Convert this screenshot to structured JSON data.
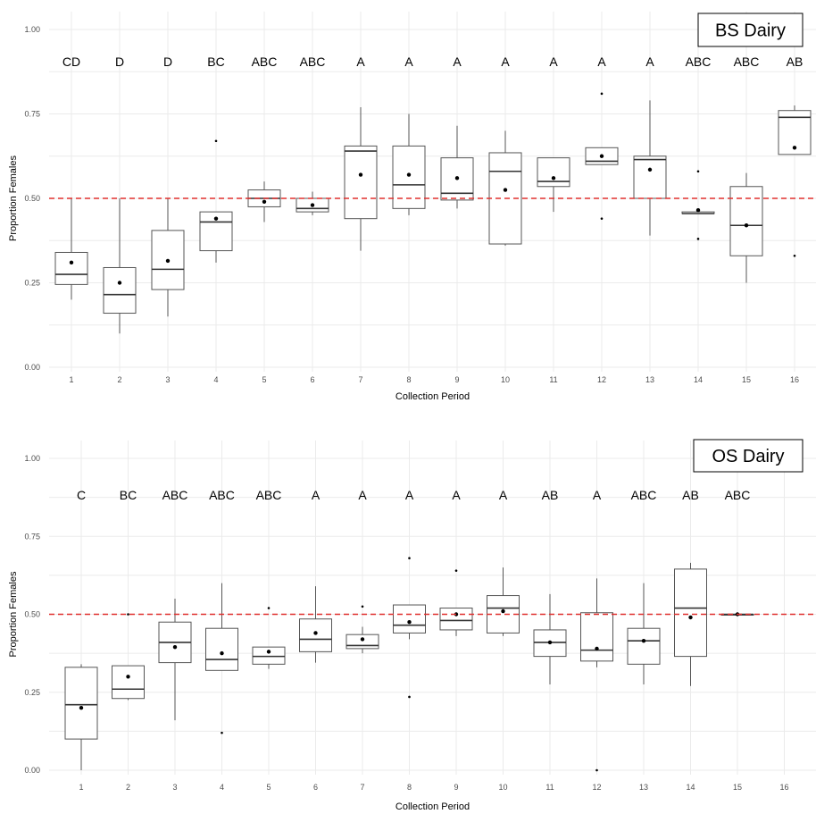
{
  "chart_data": [
    {
      "type": "box",
      "label_box": "BS Dairy",
      "xlabel": "Collection Period",
      "ylabel": "Proportion Females",
      "ylim": [
        0,
        1
      ],
      "yticks": [
        "0.00",
        "0.25",
        "0.50",
        "0.75",
        "1.00"
      ],
      "reference_line": 0.5,
      "reference_color": "#e0302f",
      "categories": [
        "1",
        "2",
        "3",
        "4",
        "5",
        "6",
        "7",
        "8",
        "9",
        "10",
        "11",
        "12",
        "13",
        "14",
        "15",
        "16"
      ],
      "letters": [
        "CD",
        "D",
        "D",
        "BC",
        "ABC",
        "ABC",
        "A",
        "A",
        "A",
        "A",
        "A",
        "A",
        "A",
        "ABC",
        "ABC",
        "AB"
      ],
      "boxes": [
        {
          "min": 0.2,
          "q1": 0.245,
          "median": 0.275,
          "q3": 0.34,
          "max": 0.5,
          "mean": 0.31
        },
        {
          "min": 0.1,
          "q1": 0.16,
          "median": 0.215,
          "q3": 0.295,
          "max": 0.5,
          "mean": 0.25
        },
        {
          "min": 0.15,
          "q1": 0.23,
          "median": 0.29,
          "q3": 0.405,
          "max": 0.5,
          "mean": 0.315
        },
        {
          "min": 0.31,
          "q1": 0.345,
          "median": 0.43,
          "q3": 0.46,
          "max": 0.46,
          "mean": 0.44,
          "outliers": [
            0.67
          ]
        },
        {
          "min": 0.43,
          "q1": 0.475,
          "median": 0.5,
          "q3": 0.525,
          "max": 0.55,
          "mean": 0.49
        },
        {
          "min": 0.45,
          "q1": 0.46,
          "median": 0.47,
          "q3": 0.5,
          "max": 0.52,
          "mean": 0.48
        },
        {
          "min": 0.345,
          "q1": 0.44,
          "median": 0.64,
          "q3": 0.655,
          "max": 0.77,
          "mean": 0.57
        },
        {
          "min": 0.45,
          "q1": 0.47,
          "median": 0.54,
          "q3": 0.655,
          "max": 0.75,
          "mean": 0.57
        },
        {
          "min": 0.47,
          "q1": 0.495,
          "median": 0.515,
          "q3": 0.62,
          "max": 0.715,
          "mean": 0.56
        },
        {
          "min": 0.36,
          "q1": 0.365,
          "median": 0.58,
          "q3": 0.635,
          "max": 0.7,
          "mean": 0.525
        },
        {
          "min": 0.46,
          "q1": 0.535,
          "median": 0.55,
          "q3": 0.62,
          "max": 0.62,
          "mean": 0.56
        },
        {
          "min": 0.6,
          "q1": 0.6,
          "median": 0.61,
          "q3": 0.65,
          "max": 0.65,
          "mean": 0.625,
          "outliers": [
            0.81,
            0.44
          ]
        },
        {
          "min": 0.39,
          "q1": 0.5,
          "median": 0.615,
          "q3": 0.625,
          "max": 0.79,
          "mean": 0.585
        },
        {
          "min": 0.455,
          "q1": 0.455,
          "median": 0.455,
          "q3": 0.46,
          "max": 0.46,
          "mean": 0.465,
          "outliers": [
            0.58,
            0.38
          ]
        },
        {
          "min": 0.25,
          "q1": 0.33,
          "median": 0.42,
          "q3": 0.535,
          "max": 0.575,
          "mean": 0.42
        },
        {
          "min": 0.63,
          "q1": 0.63,
          "median": 0.74,
          "q3": 0.76,
          "max": 0.775,
          "mean": 0.65,
          "outliers": [
            0.33
          ]
        }
      ]
    },
    {
      "type": "box",
      "label_box": "OS Dairy",
      "xlabel": "Collection Period",
      "ylabel": "Proportion Females",
      "ylim": [
        0,
        1
      ],
      "yticks": [
        "0.00",
        "0.25",
        "0.50",
        "0.75",
        "1.00"
      ],
      "reference_line": 0.5,
      "reference_color": "#e0302f",
      "categories": [
        "1",
        "2",
        "3",
        "4",
        "5",
        "6",
        "7",
        "8",
        "9",
        "10",
        "11",
        "12",
        "13",
        "14",
        "15",
        "16"
      ],
      "letters": [
        "C",
        "BC",
        "ABC",
        "ABC",
        "ABC",
        "A",
        "A",
        "A",
        "A",
        "A",
        "AB",
        "A",
        "ABC",
        "AB",
        "ABC",
        ""
      ],
      "boxes": [
        {
          "min": 0.0,
          "q1": 0.1,
          "median": 0.21,
          "q3": 0.33,
          "max": 0.34,
          "mean": 0.2
        },
        {
          "min": 0.225,
          "q1": 0.23,
          "median": 0.26,
          "q3": 0.335,
          "max": 0.335,
          "mean": 0.3,
          "outliers": [
            0.5
          ]
        },
        {
          "min": 0.16,
          "q1": 0.345,
          "median": 0.41,
          "q3": 0.475,
          "max": 0.55,
          "mean": 0.395
        },
        {
          "min": 0.32,
          "q1": 0.32,
          "median": 0.355,
          "q3": 0.455,
          "max": 0.6,
          "mean": 0.375,
          "outliers": [
            0.12
          ]
        },
        {
          "min": 0.325,
          "q1": 0.34,
          "median": 0.365,
          "q3": 0.395,
          "max": 0.395,
          "mean": 0.38,
          "outliers": [
            0.52
          ]
        },
        {
          "min": 0.345,
          "q1": 0.38,
          "median": 0.42,
          "q3": 0.485,
          "max": 0.59,
          "mean": 0.44
        },
        {
          "min": 0.375,
          "q1": 0.39,
          "median": 0.4,
          "q3": 0.435,
          "max": 0.46,
          "mean": 0.42,
          "outliers": [
            0.525
          ]
        },
        {
          "min": 0.42,
          "q1": 0.44,
          "median": 0.465,
          "q3": 0.53,
          "max": 0.53,
          "mean": 0.475,
          "outliers": [
            0.68,
            0.235
          ]
        },
        {
          "min": 0.43,
          "q1": 0.45,
          "median": 0.48,
          "q3": 0.52,
          "max": 0.52,
          "mean": 0.5,
          "outliers": [
            0.64
          ]
        },
        {
          "min": 0.43,
          "q1": 0.44,
          "median": 0.52,
          "q3": 0.56,
          "max": 0.65,
          "mean": 0.51
        },
        {
          "min": 0.275,
          "q1": 0.365,
          "median": 0.41,
          "q3": 0.45,
          "max": 0.565,
          "mean": 0.41
        },
        {
          "min": 0.33,
          "q1": 0.35,
          "median": 0.385,
          "q3": 0.505,
          "max": 0.615,
          "mean": 0.39,
          "outliers": [
            0.0
          ]
        },
        {
          "min": 0.275,
          "q1": 0.34,
          "median": 0.415,
          "q3": 0.455,
          "max": 0.6,
          "mean": 0.415
        },
        {
          "min": 0.27,
          "q1": 0.365,
          "median": 0.52,
          "q3": 0.645,
          "max": 0.665,
          "mean": 0.49
        },
        {
          "min": 0.5,
          "q1": 0.5,
          "median": 0.5,
          "q3": 0.5,
          "max": 0.5,
          "mean": 0.5
        },
        null
      ]
    }
  ]
}
